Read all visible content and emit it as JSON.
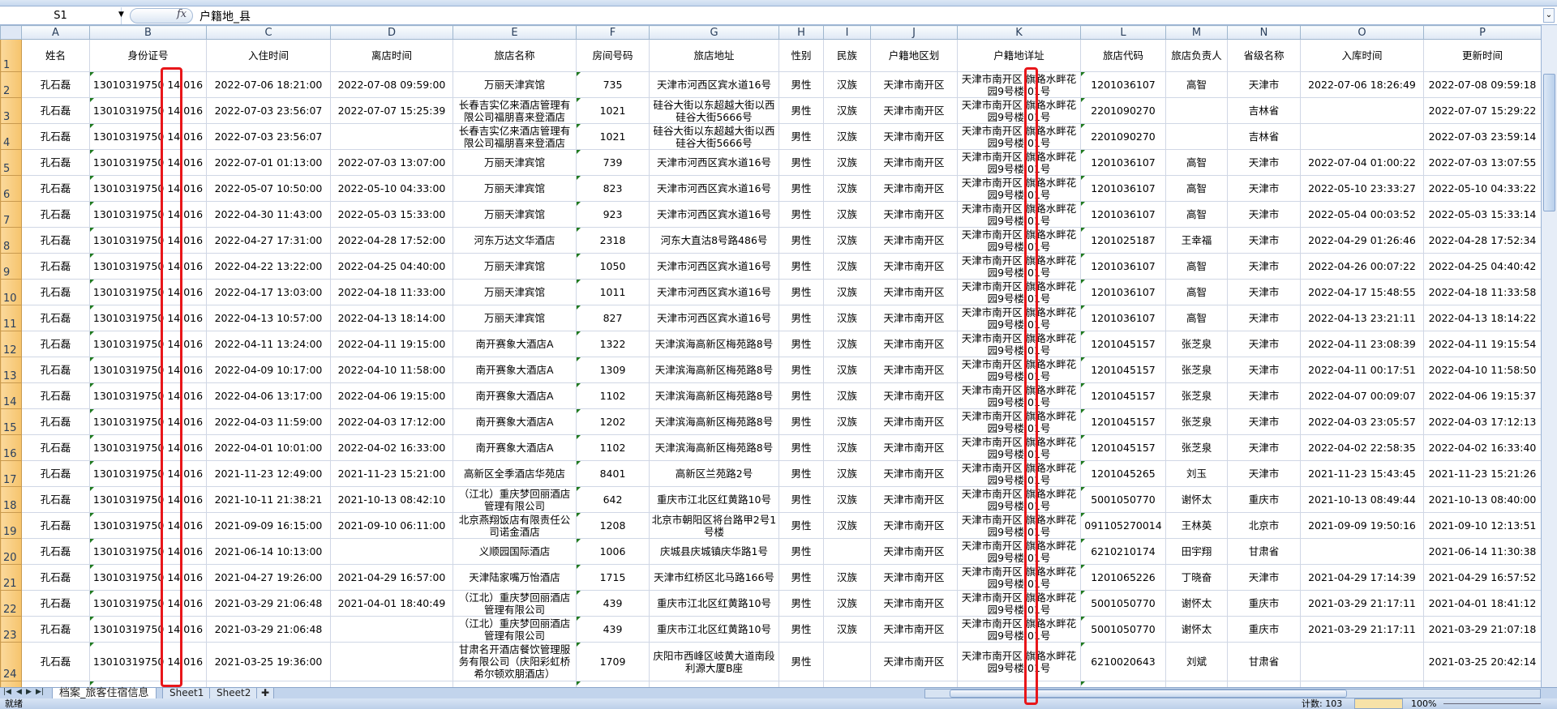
{
  "formula_bar": {
    "name_box": "S1",
    "fx_label": "fx",
    "content": "户籍地_县"
  },
  "columns": [
    "A",
    "B",
    "C",
    "D",
    "E",
    "F",
    "G",
    "H",
    "I",
    "J",
    "K",
    "L",
    "M",
    "N",
    "O",
    "P"
  ],
  "headers": [
    "姓名",
    "身份证号",
    "入住时间",
    "离店时间",
    "旅店名称",
    "房间号码",
    "旅店地址",
    "性别",
    "民族",
    "户籍地区划",
    "户籍地详址",
    "旅店代码",
    "旅店负责人",
    "省级名称",
    "入库时间",
    "更新时间"
  ],
  "rows": [
    [
      "孔石磊",
      "13010319750 14 016",
      "2022-07-06 18:21:00",
      "2022-07-08 09:59:00",
      "万丽天津宾馆",
      "735",
      "天津市河西区宾水道16号",
      "男性",
      "汉族",
      "天津市南开区",
      "天津市南开区 旗路水畔花园9号楼 01号",
      "1201036107",
      "高智",
      "天津市",
      "2022-07-06 18:26:49",
      "2022-07-08 09:59:18"
    ],
    [
      "孔石磊",
      "13010319750 14 016",
      "2022-07-03 23:56:07",
      "2022-07-07 15:25:39",
      "长春吉实亿来酒店管理有限公司福朋喜来登酒店",
      "1021",
      "硅谷大街以东超越大街以西硅谷大街5666号",
      "男性",
      "汉族",
      "天津市南开区",
      "天津市南开区 旗路水畔花园9号楼 01号",
      "2201090270",
      "",
      "吉林省",
      "",
      "2022-07-07 15:29:22"
    ],
    [
      "孔石磊",
      "13010319750 14 016",
      "2022-07-03 23:56:07",
      "",
      "长春吉实亿来酒店管理有限公司福朋喜来登酒店",
      "1021",
      "硅谷大街以东超越大街以西硅谷大街5666号",
      "男性",
      "汉族",
      "天津市南开区",
      "天津市南开区 旗路水畔花园9号楼 01号",
      "2201090270",
      "",
      "吉林省",
      "",
      "2022-07-03 23:59:14"
    ],
    [
      "孔石磊",
      "13010319750 14 016",
      "2022-07-01 01:13:00",
      "2022-07-03 13:07:00",
      "万丽天津宾馆",
      "739",
      "天津市河西区宾水道16号",
      "男性",
      "汉族",
      "天津市南开区",
      "天津市南开区 旗路水畔花园9号楼 01号",
      "1201036107",
      "高智",
      "天津市",
      "2022-07-04 01:00:22",
      "2022-07-03 13:07:55"
    ],
    [
      "孔石磊",
      "13010319750 14 016",
      "2022-05-07 10:50:00",
      "2022-05-10 04:33:00",
      "万丽天津宾馆",
      "823",
      "天津市河西区宾水道16号",
      "男性",
      "汉族",
      "天津市南开区",
      "天津市南开区 旗路水畔花园9号楼 01号",
      "1201036107",
      "高智",
      "天津市",
      "2022-05-10 23:33:27",
      "2022-05-10 04:33:22"
    ],
    [
      "孔石磊",
      "13010319750 14 016",
      "2022-04-30 11:43:00",
      "2022-05-03 15:33:00",
      "万丽天津宾馆",
      "923",
      "天津市河西区宾水道16号",
      "男性",
      "汉族",
      "天津市南开区",
      "天津市南开区 旗路水畔花园9号楼 01号",
      "1201036107",
      "高智",
      "天津市",
      "2022-05-04 00:03:52",
      "2022-05-03 15:33:14"
    ],
    [
      "孔石磊",
      "13010319750 14 016",
      "2022-04-27 17:31:00",
      "2022-04-28 17:52:00",
      "河东万达文华酒店",
      "2318",
      "河东大直沽8号路486号",
      "男性",
      "汉族",
      "天津市南开区",
      "天津市南开区 旗路水畔花园9号楼 01号",
      "1201025187",
      "王幸福",
      "天津市",
      "2022-04-29 01:26:46",
      "2022-04-28 17:52:34"
    ],
    [
      "孔石磊",
      "13010319750 14 016",
      "2022-04-22 13:22:00",
      "2022-04-25 04:40:00",
      "万丽天津宾馆",
      "1050",
      "天津市河西区宾水道16号",
      "男性",
      "汉族",
      "天津市南开区",
      "天津市南开区 旗路水畔花园9号楼 01号",
      "1201036107",
      "高智",
      "天津市",
      "2022-04-26 00:07:22",
      "2022-04-25 04:40:42"
    ],
    [
      "孔石磊",
      "13010319750 14 016",
      "2022-04-17 13:03:00",
      "2022-04-18 11:33:00",
      "万丽天津宾馆",
      "1011",
      "天津市河西区宾水道16号",
      "男性",
      "汉族",
      "天津市南开区",
      "天津市南开区 旗路水畔花园9号楼 01号",
      "1201036107",
      "高智",
      "天津市",
      "2022-04-17 15:48:55",
      "2022-04-18 11:33:58"
    ],
    [
      "孔石磊",
      "13010319750 14 016",
      "2022-04-13 10:57:00",
      "2022-04-13 18:14:00",
      "万丽天津宾馆",
      "827",
      "天津市河西区宾水道16号",
      "男性",
      "汉族",
      "天津市南开区",
      "天津市南开区 旗路水畔花园9号楼 01号",
      "1201036107",
      "高智",
      "天津市",
      "2022-04-13 23:21:11",
      "2022-04-13 18:14:22"
    ],
    [
      "孔石磊",
      "13010319750 14 016",
      "2022-04-11 13:24:00",
      "2022-04-11 19:15:00",
      "南开赛象大酒店A",
      "1322",
      "天津滨海高新区梅苑路8号",
      "男性",
      "汉族",
      "天津市南开区",
      "天津市南开区 旗路水畔花园9号楼 01号",
      "1201045157",
      "张芝泉",
      "天津市",
      "2022-04-11 23:08:39",
      "2022-04-11 19:15:54"
    ],
    [
      "孔石磊",
      "13010319750 14 016",
      "2022-04-09 10:17:00",
      "2022-04-10 11:58:00",
      "南开赛象大酒店A",
      "1309",
      "天津滨海高新区梅苑路8号",
      "男性",
      "汉族",
      "天津市南开区",
      "天津市南开区 旗路水畔花园9号楼 01号",
      "1201045157",
      "张芝泉",
      "天津市",
      "2022-04-11 00:17:51",
      "2022-04-10 11:58:50"
    ],
    [
      "孔石磊",
      "13010319750 14 016",
      "2022-04-06 13:17:00",
      "2022-04-06 19:15:00",
      "南开赛象大酒店A",
      "1102",
      "天津滨海高新区梅苑路8号",
      "男性",
      "汉族",
      "天津市南开区",
      "天津市南开区 旗路水畔花园9号楼 01号",
      "1201045157",
      "张芝泉",
      "天津市",
      "2022-04-07 00:09:07",
      "2022-04-06 19:15:37"
    ],
    [
      "孔石磊",
      "13010319750 14 016",
      "2022-04-03 11:59:00",
      "2022-04-03 17:12:00",
      "南开赛象大酒店A",
      "1202",
      "天津滨海高新区梅苑路8号",
      "男性",
      "汉族",
      "天津市南开区",
      "天津市南开区 旗路水畔花园9号楼 01号",
      "1201045157",
      "张芝泉",
      "天津市",
      "2022-04-03 23:05:57",
      "2022-04-03 17:12:13"
    ],
    [
      "孔石磊",
      "13010319750 14 016",
      "2022-04-01 10:01:00",
      "2022-04-02 16:33:00",
      "南开赛象大酒店A",
      "1102",
      "天津滨海高新区梅苑路8号",
      "男性",
      "汉族",
      "天津市南开区",
      "天津市南开区 旗路水畔花园9号楼 01号",
      "1201045157",
      "张芝泉",
      "天津市",
      "2022-04-02 22:58:35",
      "2022-04-02 16:33:40"
    ],
    [
      "孔石磊",
      "13010319750 14 016",
      "2021-11-23 12:49:00",
      "2021-11-23 15:21:00",
      "高新区全季酒店华苑店",
      "8401",
      "高新区兰苑路2号",
      "男性",
      "汉族",
      "天津市南开区",
      "天津市南开区 旗路水畔花园9号楼 01号",
      "1201045265",
      "刘玉",
      "天津市",
      "2021-11-23 15:43:45",
      "2021-11-23 15:21:26"
    ],
    [
      "孔石磊",
      "13010319750 14 016",
      "2021-10-11 21:38:21",
      "2021-10-13 08:42:10",
      "（江北）重庆梦回丽酒店管理有限公司",
      "642",
      "重庆市江北区红黄路10号",
      "男性",
      "汉族",
      "天津市南开区",
      "天津市南开区 旗路水畔花园9号楼 01号",
      "5001050770",
      "谢怀太",
      "重庆市",
      "2021-10-13 08:49:44",
      "2021-10-13 08:40:00"
    ],
    [
      "孔石磊",
      "13010319750 14 016",
      "2021-09-09 16:15:00",
      "2021-09-10 06:11:00",
      "北京燕翔饭店有限责任公司诺金酒店",
      "1208",
      "北京市朝阳区将台路甲2号1号楼",
      "男性",
      "汉族",
      "天津市南开区",
      "天津市南开区 旗路水畔花园9号楼 01号",
      "091105270014",
      "王林英",
      "北京市",
      "2021-09-09 19:50:16",
      "2021-09-10 12:13:51"
    ],
    [
      "孔石磊",
      "13010319750 14 016",
      "2021-06-14 10:13:00",
      "",
      "义顺园国际酒店",
      "1006",
      "庆城县庆城镇庆华路1号",
      "男性",
      "",
      "天津市南开区",
      "天津市南开区 旗路水畔花园9号楼 01号",
      "6210210174",
      "田宇翔",
      "甘肃省",
      "",
      "2021-06-14 11:30:38"
    ],
    [
      "孔石磊",
      "13010319750 14 016",
      "2021-04-27 19:26:00",
      "2021-04-29 16:57:00",
      "天津陆家嘴万怡酒店",
      "1715",
      "天津市红桥区北马路166号",
      "男性",
      "汉族",
      "天津市南开区",
      "天津市南开区 旗路水畔花园9号楼 01号",
      "1201065226",
      "丁晓奋",
      "天津市",
      "2021-04-29 17:14:39",
      "2021-04-29 16:57:52"
    ],
    [
      "孔石磊",
      "13010319750 14 016",
      "2021-03-29 21:06:48",
      "2021-04-01 18:40:49",
      "（江北）重庆梦回丽酒店管理有限公司",
      "439",
      "重庆市江北区红黄路10号",
      "男性",
      "汉族",
      "天津市南开区",
      "天津市南开区 旗路水畔花园9号楼 01号",
      "5001050770",
      "谢怀太",
      "重庆市",
      "2021-03-29 21:17:11",
      "2021-04-01 18:41:12"
    ],
    [
      "孔石磊",
      "13010319750 14 016",
      "2021-03-29 21:06:48",
      "",
      "（江北）重庆梦回丽酒店管理有限公司",
      "439",
      "重庆市江北区红黄路10号",
      "男性",
      "汉族",
      "天津市南开区",
      "天津市南开区 旗路水畔花园9号楼 01号",
      "5001050770",
      "谢怀太",
      "重庆市",
      "2021-03-29 21:17:11",
      "2021-03-29 21:07:18"
    ],
    [
      "孔石磊",
      "13010319750 14 016",
      "2021-03-25 19:36:00",
      "",
      "甘肃名开酒店餐饮管理服务有限公司（庆阳彩虹桥希尔顿欢朋酒店）",
      "1709",
      "庆阳市西峰区岐黄大道南段利源大厦B座",
      "男性",
      "",
      "天津市南开区",
      "天津市南开区 旗路水畔花园9号楼 01号",
      "6210020643",
      "刘斌",
      "甘肃省",
      "",
      "2021-03-25 20:42:14"
    ]
  ],
  "sheet_tabs": [
    "档案_旅客住宿信息",
    "Sheet1",
    "Sheet2"
  ],
  "status": {
    "ready": "就绪",
    "count": "计数: 103",
    "zoom": "100%"
  },
  "colors": {
    "highlight_box": "#e8161a",
    "row_header": "#f6c46c",
    "grid_line": "#d0d7e5"
  }
}
